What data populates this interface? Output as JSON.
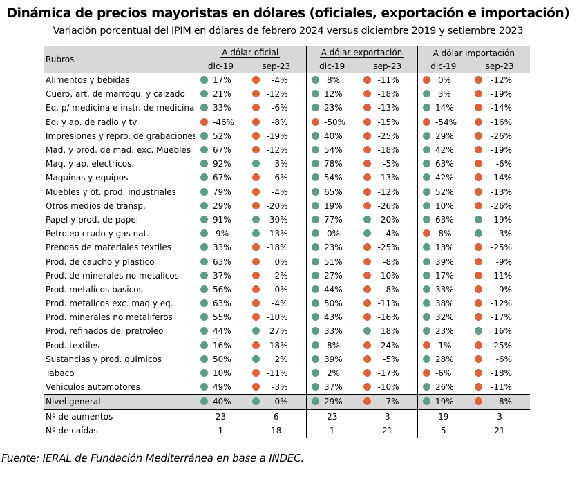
{
  "title": "Dinámica de precios mayoristas en dólares (oficiales, exportación e importación)",
  "subtitle": "Variación porcentual del IPIM en dólares de febrero 2024 versus diciembre 2019 y setiembre 2023",
  "colors": {
    "positive": "#5b9e83",
    "negative": "#e0603a",
    "header_bg": "#d8d8d8"
  },
  "table": {
    "rubros_header": "Rubros",
    "groups": [
      "A dólar oficial",
      "A dólar exportación",
      "A dólar importación"
    ],
    "subheaders": [
      "dic-19",
      "sep-23",
      "dic-19",
      "sep-23",
      "dic-19",
      "sep-23"
    ],
    "rows": [
      {
        "rubro": "Alimentos y bebidas",
        "values": [
          "17%",
          "-4%",
          "8%",
          "-11%",
          "0%",
          "-12%"
        ],
        "status": [
          "pos",
          "neg",
          "pos",
          "neg",
          "neg",
          "neg"
        ]
      },
      {
        "rubro": "Cuero, art. de marroqu. y calzado",
        "values": [
          "21%",
          "-12%",
          "12%",
          "-18%",
          "3%",
          "-19%"
        ],
        "status": [
          "pos",
          "neg",
          "pos",
          "neg",
          "pos",
          "neg"
        ]
      },
      {
        "rubro": "Eq. p/ medicina e instr. de medicina",
        "values": [
          "33%",
          "-6%",
          "23%",
          "-13%",
          "14%",
          "-14%"
        ],
        "status": [
          "pos",
          "neg",
          "pos",
          "neg",
          "pos",
          "neg"
        ]
      },
      {
        "rubro": "Eq. y ap. de radio y tv",
        "values": [
          "-46%",
          "-8%",
          "-50%",
          "-15%",
          "-54%",
          "-16%"
        ],
        "status": [
          "neg",
          "neg",
          "neg",
          "neg",
          "neg",
          "neg"
        ]
      },
      {
        "rubro": "Impresiones y repro. de grabaciones",
        "values": [
          "52%",
          "-19%",
          "40%",
          "-25%",
          "29%",
          "-26%"
        ],
        "status": [
          "pos",
          "neg",
          "pos",
          "neg",
          "pos",
          "neg"
        ]
      },
      {
        "rubro": "Mad. y prod. de mad. exc. Muebles",
        "values": [
          "67%",
          "-12%",
          "54%",
          "-18%",
          "42%",
          "-19%"
        ],
        "status": [
          "pos",
          "neg",
          "pos",
          "neg",
          "pos",
          "neg"
        ]
      },
      {
        "rubro": "Maq. y ap. electricos.",
        "values": [
          "92%",
          "3%",
          "78%",
          "-5%",
          "63%",
          "-6%"
        ],
        "status": [
          "pos",
          "pos",
          "pos",
          "neg",
          "pos",
          "neg"
        ]
      },
      {
        "rubro": "Maquinas y equipos",
        "values": [
          "67%",
          "-6%",
          "54%",
          "-13%",
          "42%",
          "-14%"
        ],
        "status": [
          "pos",
          "neg",
          "pos",
          "neg",
          "pos",
          "neg"
        ]
      },
      {
        "rubro": "Muebles y ot. prod. industriales",
        "values": [
          "79%",
          "-4%",
          "65%",
          "-12%",
          "52%",
          "-13%"
        ],
        "status": [
          "pos",
          "neg",
          "pos",
          "neg",
          "pos",
          "neg"
        ]
      },
      {
        "rubro": "Otros medios de transp.",
        "values": [
          "29%",
          "-20%",
          "19%",
          "-26%",
          "10%",
          "-26%"
        ],
        "status": [
          "pos",
          "neg",
          "pos",
          "neg",
          "pos",
          "neg"
        ]
      },
      {
        "rubro": "Papel y prod. de papel",
        "values": [
          "91%",
          "30%",
          "77%",
          "20%",
          "63%",
          "19%"
        ],
        "status": [
          "pos",
          "pos",
          "pos",
          "pos",
          "pos",
          "pos"
        ]
      },
      {
        "rubro": "Petroleo crudo y gas nat.",
        "values": [
          "9%",
          "13%",
          "0%",
          "4%",
          "-8%",
          "3%"
        ],
        "status": [
          "pos",
          "pos",
          "pos",
          "pos",
          "neg",
          "pos"
        ]
      },
      {
        "rubro": "Prendas de materiales textiles",
        "values": [
          "33%",
          "-18%",
          "23%",
          "-25%",
          "13%",
          "-25%"
        ],
        "status": [
          "pos",
          "neg",
          "pos",
          "neg",
          "pos",
          "neg"
        ]
      },
      {
        "rubro": "Prod. de caucho y plastico",
        "values": [
          "63%",
          "0%",
          "51%",
          "-8%",
          "39%",
          "-9%"
        ],
        "status": [
          "pos",
          "neg",
          "pos",
          "neg",
          "pos",
          "neg"
        ]
      },
      {
        "rubro": "Prod. de minerales no metalicos",
        "values": [
          "37%",
          "-2%",
          "27%",
          "-10%",
          "17%",
          "-11%"
        ],
        "status": [
          "pos",
          "neg",
          "pos",
          "neg",
          "pos",
          "neg"
        ]
      },
      {
        "rubro": "Prod. metalicos basicos",
        "values": [
          "56%",
          "0%",
          "44%",
          "-8%",
          "33%",
          "-9%"
        ],
        "status": [
          "pos",
          "neg",
          "pos",
          "neg",
          "pos",
          "neg"
        ]
      },
      {
        "rubro": "Prod. metalicos exc. maq y eq.",
        "values": [
          "63%",
          "-4%",
          "50%",
          "-11%",
          "38%",
          "-12%"
        ],
        "status": [
          "pos",
          "neg",
          "pos",
          "neg",
          "pos",
          "neg"
        ]
      },
      {
        "rubro": "Prod. minerales no metaliferos",
        "values": [
          "55%",
          "-10%",
          "43%",
          "-16%",
          "32%",
          "-17%"
        ],
        "status": [
          "pos",
          "neg",
          "pos",
          "neg",
          "pos",
          "neg"
        ]
      },
      {
        "rubro": "Prod. refinados del pretroleo",
        "values": [
          "44%",
          "27%",
          "33%",
          "18%",
          "23%",
          "16%"
        ],
        "status": [
          "pos",
          "pos",
          "pos",
          "pos",
          "pos",
          "pos"
        ]
      },
      {
        "rubro": "Prod. textiles",
        "values": [
          "16%",
          "-18%",
          "8%",
          "-24%",
          "-1%",
          "-25%"
        ],
        "status": [
          "pos",
          "neg",
          "pos",
          "neg",
          "neg",
          "neg"
        ]
      },
      {
        "rubro": "Sustancias y prod. quimicos",
        "values": [
          "50%",
          "2%",
          "39%",
          "-5%",
          "28%",
          "-6%"
        ],
        "status": [
          "pos",
          "pos",
          "pos",
          "neg",
          "pos",
          "neg"
        ]
      },
      {
        "rubro": "Tabaco",
        "values": [
          "10%",
          "-11%",
          "2%",
          "-17%",
          "-6%",
          "-18%"
        ],
        "status": [
          "pos",
          "neg",
          "pos",
          "neg",
          "neg",
          "neg"
        ]
      },
      {
        "rubro": "Vehiculos automotores",
        "values": [
          "49%",
          "-3%",
          "37%",
          "-10%",
          "26%",
          "-11%"
        ],
        "status": [
          "pos",
          "neg",
          "pos",
          "neg",
          "pos",
          "neg"
        ]
      }
    ],
    "nivel_general": {
      "rubro": "Nivel general",
      "values": [
        "40%",
        "0%",
        "29%",
        "-7%",
        "19%",
        "-8%"
      ],
      "status": [
        "pos",
        "pos",
        "pos",
        "neg",
        "pos",
        "neg"
      ]
    },
    "aumentos": {
      "label": "Nº de aumentos",
      "values": [
        "23",
        "6",
        "23",
        "3",
        "19",
        "3"
      ]
    },
    "caidas": {
      "label": "Nº de caídas",
      "values": [
        "1",
        "18",
        "1",
        "21",
        "5",
        "21"
      ]
    }
  },
  "source": "Fuente: IERAL de Fundación Mediterránea en base a INDEC."
}
